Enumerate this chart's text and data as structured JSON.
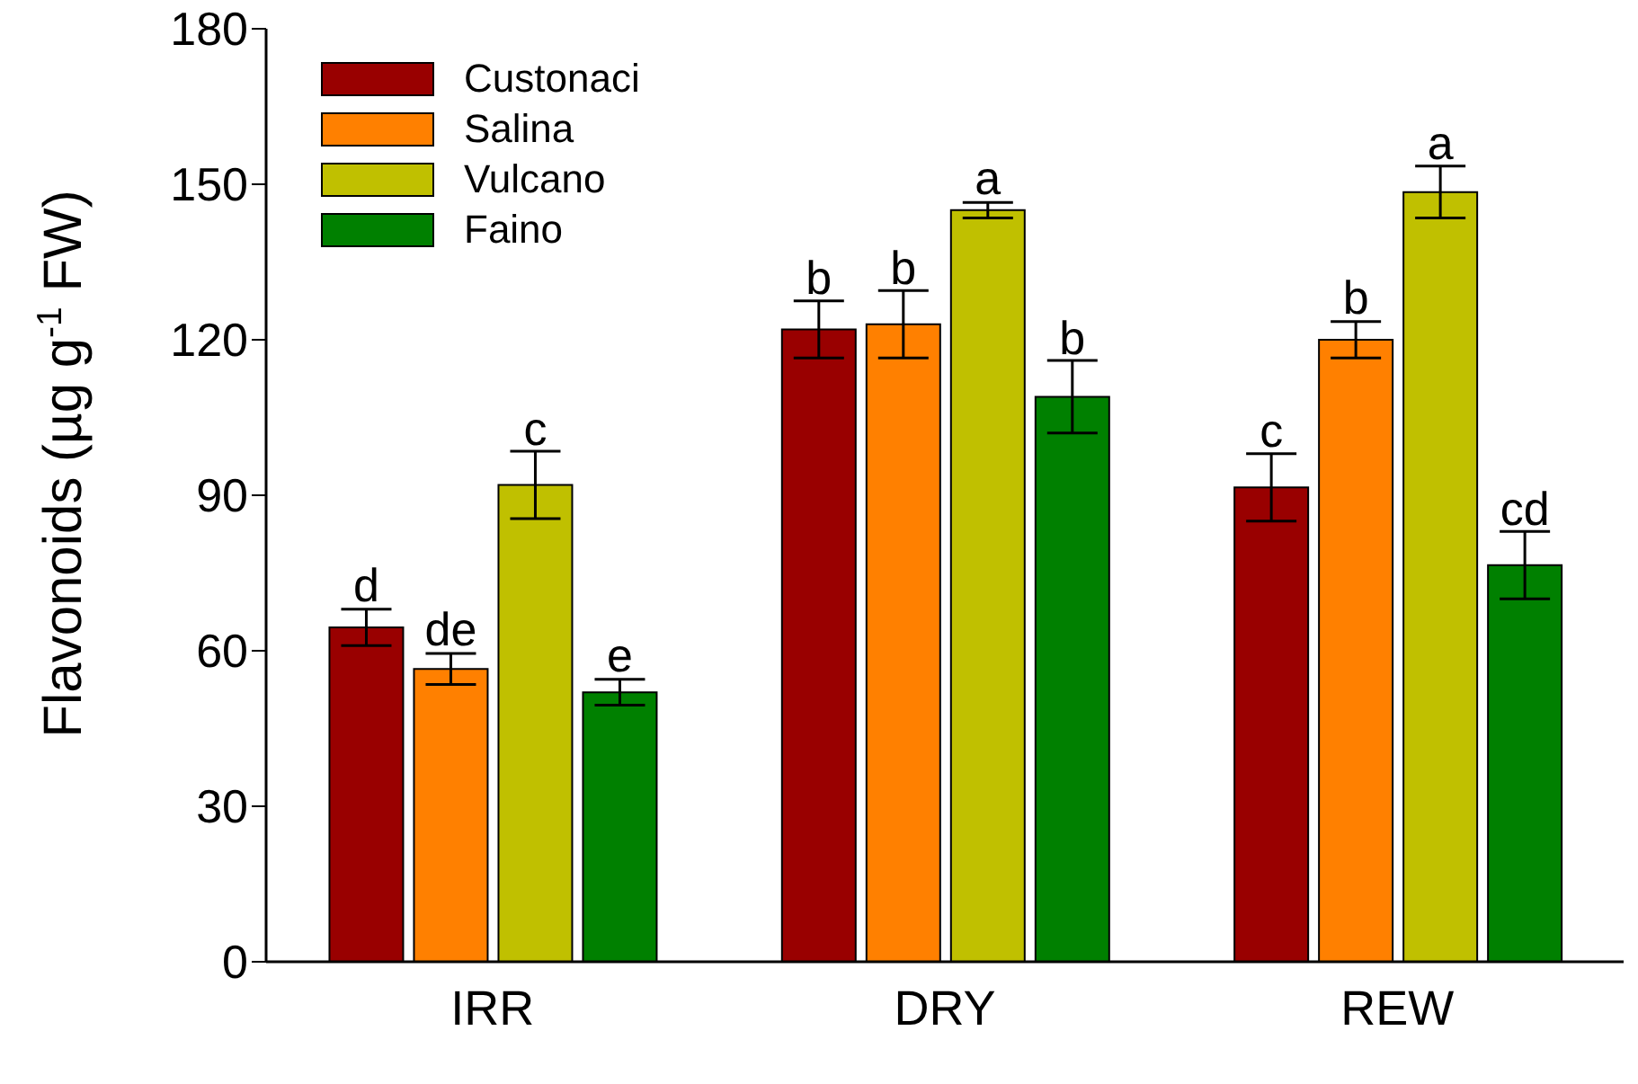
{
  "chart_data": {
    "type": "bar",
    "ylabel": "Flavonoids (µg g$^{-1}$ FW)",
    "categories": [
      "IRR",
      "DRY",
      "REW"
    ],
    "series": [
      {
        "name": "Custonaci",
        "color": "#990000",
        "values": [
          64.5,
          122,
          91.5
        ],
        "errors": [
          3.5,
          5.5,
          6.5
        ],
        "value_labels": [
          "d",
          "b",
          "c"
        ]
      },
      {
        "name": "Salina",
        "color": "#ff8000",
        "values": [
          56.5,
          123,
          120
        ],
        "errors": [
          3,
          6.5,
          3.5
        ],
        "value_labels": [
          "de",
          "b",
          "b"
        ]
      },
      {
        "name": "Vulcano",
        "color": "#c0c000",
        "values": [
          92,
          145,
          148.5
        ],
        "errors": [
          6.5,
          1.5,
          5
        ],
        "value_labels": [
          "c",
          "a",
          "a"
        ]
      },
      {
        "name": "Faino",
        "color": "#008000",
        "values": [
          52,
          109,
          76.5
        ],
        "errors": [
          2.5,
          7,
          6.5
        ],
        "value_labels": [
          "e",
          "b",
          "cd"
        ]
      }
    ],
    "ylim": [
      0,
      180
    ],
    "yticks": [
      0,
      30,
      60,
      90,
      120,
      150,
      180
    ],
    "grid": false,
    "legend": "top left"
  }
}
